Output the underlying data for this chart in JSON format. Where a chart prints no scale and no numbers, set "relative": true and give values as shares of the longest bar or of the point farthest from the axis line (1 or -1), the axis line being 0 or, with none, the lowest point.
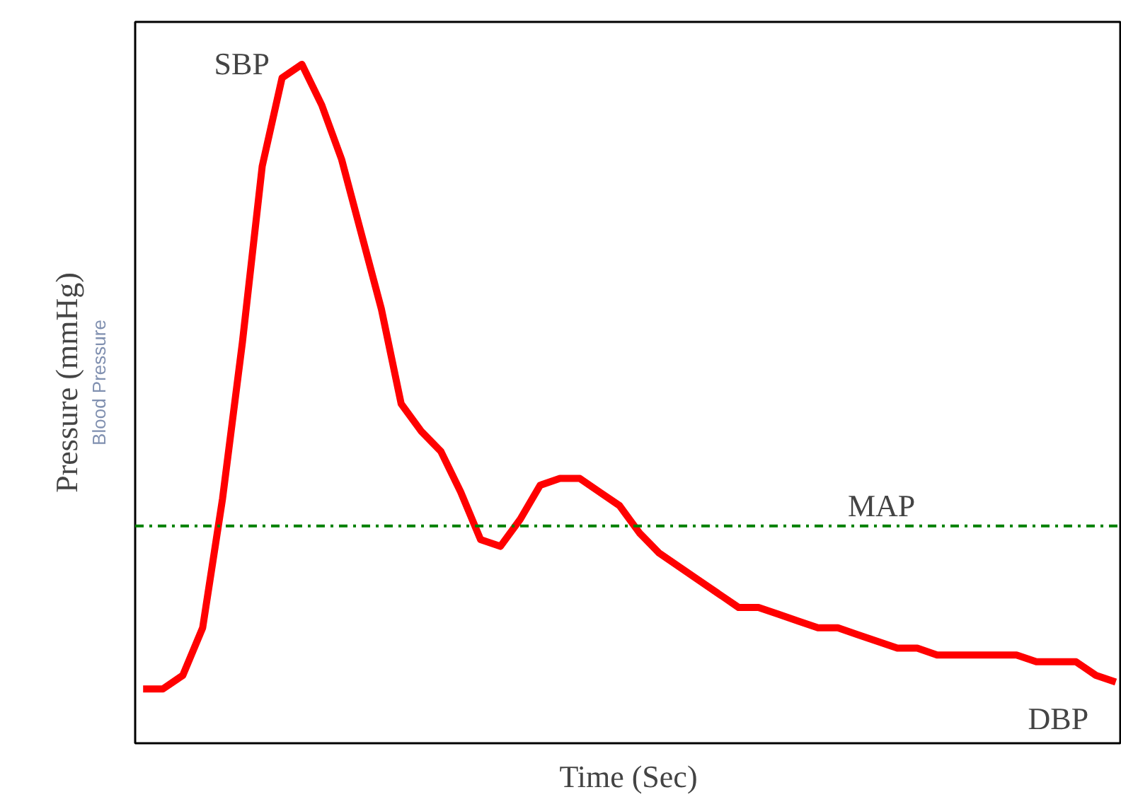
{
  "chart_data": {
    "type": "line",
    "relative": true,
    "xlabel": "Time (Sec)",
    "ylabel": "Pressure (mmHg)",
    "categories": [
      null,
      null,
      null,
      null,
      null,
      null,
      null,
      null,
      null,
      null,
      null,
      null,
      null,
      null,
      null,
      null,
      null,
      null,
      null,
      null,
      null,
      null,
      null,
      null,
      null,
      null,
      null,
      null,
      null,
      null,
      null,
      null,
      null,
      null,
      null,
      null,
      null,
      null,
      null,
      null,
      null,
      null,
      null,
      null,
      null,
      null,
      null,
      null,
      null,
      null
    ],
    "series": [
      {
        "color": "#ff0000",
        "values": [
          0.08,
          0.08,
          0.1,
          0.17,
          0.36,
          0.59,
          0.85,
          0.98,
          1.0,
          0.94,
          0.86,
          0.75,
          0.64,
          0.5,
          0.46,
          0.43,
          0.37,
          0.3,
          0.29,
          0.33,
          0.38,
          0.39,
          0.39,
          0.37,
          0.35,
          0.31,
          0.28,
          0.26,
          0.24,
          0.22,
          0.2,
          0.2,
          0.19,
          0.18,
          0.17,
          0.17,
          0.16,
          0.15,
          0.14,
          0.14,
          0.13,
          0.13,
          0.13,
          0.13,
          0.13,
          0.12,
          0.12,
          0.12,
          0.1,
          0.09
        ]
      }
    ],
    "ref_lines": [
      {
        "axis": "y",
        "value": 0.32,
        "label": "MAP",
        "color": "#008000",
        "line_style": "dashdot"
      }
    ],
    "annotations": [
      "SBP",
      "DBP",
      "Blood Pressure"
    ],
    "grid": false,
    "tick_labels": false,
    "marker": "none",
    "line_style": "solid"
  }
}
